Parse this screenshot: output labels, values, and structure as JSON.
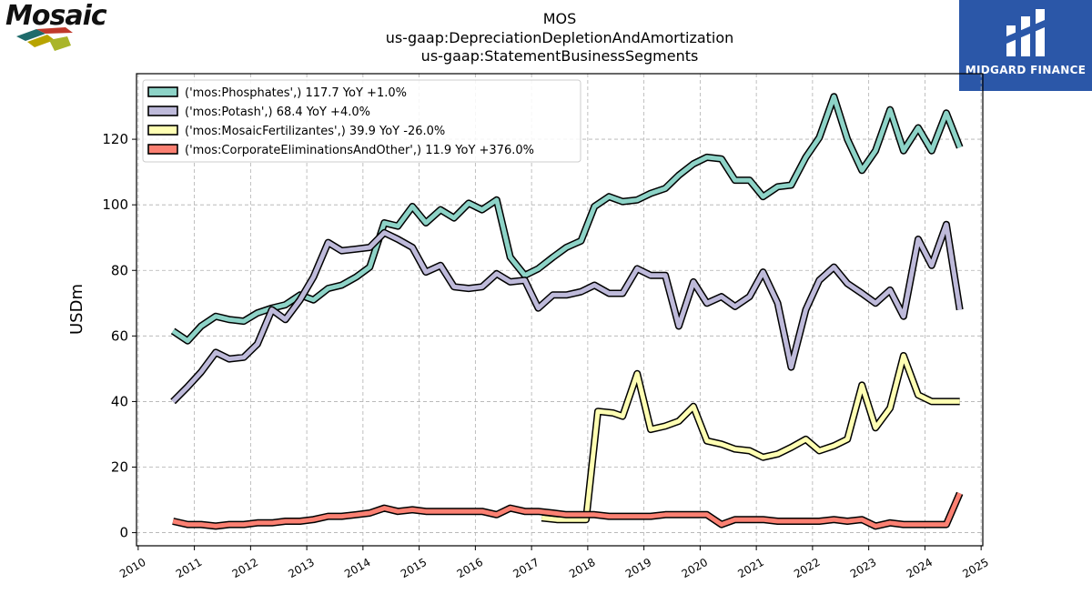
{
  "header": {
    "title_lines": [
      "MOS",
      "us-gaap:DepreciationDepletionAndAmortization",
      "us-gaap:StatementBusinessSegments"
    ],
    "left_logo_text": "Mosaic",
    "right_logo_text": "MIDGARD FINANCE"
  },
  "colors": {
    "phosphates": "#8dd3c7",
    "potash": "#bebada",
    "fertilizantes": "#ffffb3",
    "corporate": "#fb8072",
    "brand_blue": "#2b57a8"
  },
  "chart_data": {
    "type": "line",
    "title": "MOS",
    "subtitle": "us-gaap:DepreciationDepletionAndAmortization / us-gaap:StatementBusinessSegments",
    "xlabel": "",
    "ylabel": "USDm",
    "xlim": [
      2009.97,
      2025.03
    ],
    "ylim": [
      -4,
      140
    ],
    "x_ticks": [
      "2010",
      "2011",
      "2012",
      "2013",
      "2014",
      "2015",
      "2016",
      "2017",
      "2018",
      "2019",
      "2020",
      "2021",
      "2022",
      "2023",
      "2024",
      "2025"
    ],
    "y_ticks": [
      0,
      20,
      40,
      60,
      80,
      100,
      120
    ],
    "grid": true,
    "legend_position": "top-left",
    "series": [
      {
        "name": "('mos:Phosphates',) 117.7 YoY +1.0%",
        "color_key": "phosphates",
        "points": [
          [
            2010.62,
            61.5
          ],
          [
            2010.88,
            58.5
          ],
          [
            2011.12,
            63
          ],
          [
            2011.38,
            66
          ],
          [
            2011.62,
            65
          ],
          [
            2011.88,
            64.5
          ],
          [
            2012.12,
            67
          ],
          [
            2012.38,
            68.5
          ],
          [
            2012.62,
            69.5
          ],
          [
            2012.88,
            72.5
          ],
          [
            2013.12,
            71
          ],
          [
            2013.38,
            74.5
          ],
          [
            2013.62,
            75.5
          ],
          [
            2013.88,
            78
          ],
          [
            2014.12,
            81
          ],
          [
            2014.38,
            94.5
          ],
          [
            2014.62,
            93.5
          ],
          [
            2014.88,
            99.5
          ],
          [
            2015.12,
            94.5
          ],
          [
            2015.38,
            98.5
          ],
          [
            2015.62,
            96
          ],
          [
            2015.88,
            100.5
          ],
          [
            2016.12,
            98.5
          ],
          [
            2016.38,
            101.5
          ],
          [
            2016.62,
            84
          ],
          [
            2016.88,
            78.5
          ],
          [
            2017.12,
            80.5
          ],
          [
            2017.38,
            84
          ],
          [
            2017.62,
            87
          ],
          [
            2017.88,
            89
          ],
          [
            2018.12,
            99.5
          ],
          [
            2018.38,
            102.5
          ],
          [
            2018.62,
            101
          ],
          [
            2018.88,
            101.5
          ],
          [
            2019.12,
            103.5
          ],
          [
            2019.38,
            105
          ],
          [
            2019.62,
            109
          ],
          [
            2019.88,
            112.5
          ],
          [
            2020.12,
            114.5
          ],
          [
            2020.38,
            114
          ],
          [
            2020.62,
            107.5
          ],
          [
            2020.88,
            107.5
          ],
          [
            2021.12,
            102.5
          ],
          [
            2021.38,
            105.5
          ],
          [
            2021.62,
            106
          ],
          [
            2021.88,
            114.5
          ],
          [
            2022.12,
            120.5
          ],
          [
            2022.38,
            133
          ],
          [
            2022.62,
            120
          ],
          [
            2022.88,
            110.5
          ],
          [
            2023.12,
            116.5
          ],
          [
            2023.38,
            129
          ],
          [
            2023.62,
            116.5
          ],
          [
            2023.88,
            123.5
          ],
          [
            2024.12,
            116.5
          ],
          [
            2024.38,
            128
          ],
          [
            2024.62,
            117.5
          ]
        ]
      },
      {
        "name": "('mos:Potash',) 68.4 YoY +4.0%",
        "color_key": "potash",
        "points": [
          [
            2010.62,
            40
          ],
          [
            2010.88,
            44.5
          ],
          [
            2011.12,
            49
          ],
          [
            2011.38,
            55
          ],
          [
            2011.62,
            53
          ],
          [
            2011.88,
            53.5
          ],
          [
            2012.12,
            57.5
          ],
          [
            2012.38,
            68
          ],
          [
            2012.62,
            65
          ],
          [
            2012.88,
            71
          ],
          [
            2013.12,
            78
          ],
          [
            2013.38,
            88.5
          ],
          [
            2013.62,
            86
          ],
          [
            2013.88,
            86.5
          ],
          [
            2014.12,
            87
          ],
          [
            2014.38,
            91.5
          ],
          [
            2014.62,
            89.5
          ],
          [
            2014.88,
            87
          ],
          [
            2015.12,
            79.5
          ],
          [
            2015.38,
            81.5
          ],
          [
            2015.62,
            75
          ],
          [
            2015.88,
            74.5
          ],
          [
            2016.12,
            75
          ],
          [
            2016.38,
            79
          ],
          [
            2016.62,
            76.5
          ],
          [
            2016.88,
            77
          ],
          [
            2017.12,
            68.5
          ],
          [
            2017.38,
            72.5
          ],
          [
            2017.62,
            72.5
          ],
          [
            2017.88,
            73.5
          ],
          [
            2018.12,
            75.5
          ],
          [
            2018.38,
            73
          ],
          [
            2018.62,
            73
          ],
          [
            2018.88,
            80.5
          ],
          [
            2019.12,
            78.5
          ],
          [
            2019.38,
            78.5
          ],
          [
            2019.62,
            63
          ],
          [
            2019.88,
            76.5
          ],
          [
            2020.12,
            70
          ],
          [
            2020.38,
            72
          ],
          [
            2020.62,
            69
          ],
          [
            2020.88,
            72
          ],
          [
            2021.12,
            79.5
          ],
          [
            2021.38,
            70
          ],
          [
            2021.62,
            50.5
          ],
          [
            2021.88,
            68
          ],
          [
            2022.12,
            77
          ],
          [
            2022.38,
            81
          ],
          [
            2022.62,
            76
          ],
          [
            2022.88,
            73
          ],
          [
            2023.12,
            70
          ],
          [
            2023.38,
            74
          ],
          [
            2023.62,
            66
          ],
          [
            2023.88,
            89.5
          ],
          [
            2024.12,
            81.5
          ],
          [
            2024.38,
            94
          ],
          [
            2024.62,
            68
          ]
        ]
      },
      {
        "name": "('mos:MosaicFertilizantes',) 39.9 YoY -26.0%",
        "color_key": "fertilizantes",
        "points": [
          [
            2017.18,
            4.5
          ],
          [
            2017.45,
            4
          ],
          [
            2017.72,
            4
          ],
          [
            2017.97,
            4
          ],
          [
            2018.18,
            37
          ],
          [
            2018.45,
            36.5
          ],
          [
            2018.62,
            35.5
          ],
          [
            2018.88,
            48.5
          ],
          [
            2019.12,
            31.5
          ],
          [
            2019.38,
            32.5
          ],
          [
            2019.62,
            34
          ],
          [
            2019.88,
            38.5
          ],
          [
            2020.12,
            28
          ],
          [
            2020.38,
            27
          ],
          [
            2020.62,
            25.5
          ],
          [
            2020.88,
            25
          ],
          [
            2021.12,
            23
          ],
          [
            2021.38,
            24
          ],
          [
            2021.62,
            26
          ],
          [
            2021.88,
            28.5
          ],
          [
            2022.12,
            25
          ],
          [
            2022.38,
            26.5
          ],
          [
            2022.62,
            28.5
          ],
          [
            2022.88,
            45
          ],
          [
            2023.12,
            32
          ],
          [
            2023.38,
            38
          ],
          [
            2023.62,
            54
          ],
          [
            2023.88,
            42
          ],
          [
            2024.12,
            40
          ],
          [
            2024.38,
            40
          ],
          [
            2024.62,
            40
          ]
        ]
      },
      {
        "name": "('mos:CorporateEliminationsAndOther',) 11.9 YoY +376.0%",
        "color_key": "corporate",
        "points": [
          [
            2010.62,
            3.5
          ],
          [
            2010.88,
            2.5
          ],
          [
            2011.12,
            2.5
          ],
          [
            2011.38,
            2
          ],
          [
            2011.62,
            2.5
          ],
          [
            2011.88,
            2.5
          ],
          [
            2012.12,
            3
          ],
          [
            2012.38,
            3
          ],
          [
            2012.62,
            3.5
          ],
          [
            2012.88,
            3.5
          ],
          [
            2013.12,
            4
          ],
          [
            2013.38,
            5
          ],
          [
            2013.62,
            5
          ],
          [
            2013.88,
            5.5
          ],
          [
            2014.12,
            6
          ],
          [
            2014.38,
            7.5
          ],
          [
            2014.62,
            6.5
          ],
          [
            2014.88,
            7
          ],
          [
            2015.12,
            6.5
          ],
          [
            2015.38,
            6.5
          ],
          [
            2015.62,
            6.5
          ],
          [
            2015.88,
            6.5
          ],
          [
            2016.12,
            6.5
          ],
          [
            2016.38,
            5.5
          ],
          [
            2016.62,
            7.5
          ],
          [
            2016.88,
            6.5
          ],
          [
            2017.12,
            6.5
          ],
          [
            2017.38,
            6
          ],
          [
            2017.62,
            5.5
          ],
          [
            2017.88,
            5.5
          ],
          [
            2018.12,
            5.5
          ],
          [
            2018.38,
            5
          ],
          [
            2018.62,
            5
          ],
          [
            2018.88,
            5
          ],
          [
            2019.12,
            5
          ],
          [
            2019.38,
            5.5
          ],
          [
            2019.62,
            5.5
          ],
          [
            2019.88,
            5.5
          ],
          [
            2020.12,
            5.5
          ],
          [
            2020.38,
            2.5
          ],
          [
            2020.62,
            4
          ],
          [
            2020.88,
            4
          ],
          [
            2021.12,
            4
          ],
          [
            2021.38,
            3.5
          ],
          [
            2021.62,
            3.5
          ],
          [
            2021.88,
            3.5
          ],
          [
            2022.12,
            3.5
          ],
          [
            2022.38,
            4
          ],
          [
            2022.62,
            3.5
          ],
          [
            2022.88,
            4
          ],
          [
            2023.12,
            2
          ],
          [
            2023.38,
            3
          ],
          [
            2023.62,
            2.5
          ],
          [
            2023.88,
            2.5
          ],
          [
            2024.12,
            2.5
          ],
          [
            2024.38,
            2.5
          ],
          [
            2024.62,
            12
          ]
        ]
      }
    ]
  }
}
